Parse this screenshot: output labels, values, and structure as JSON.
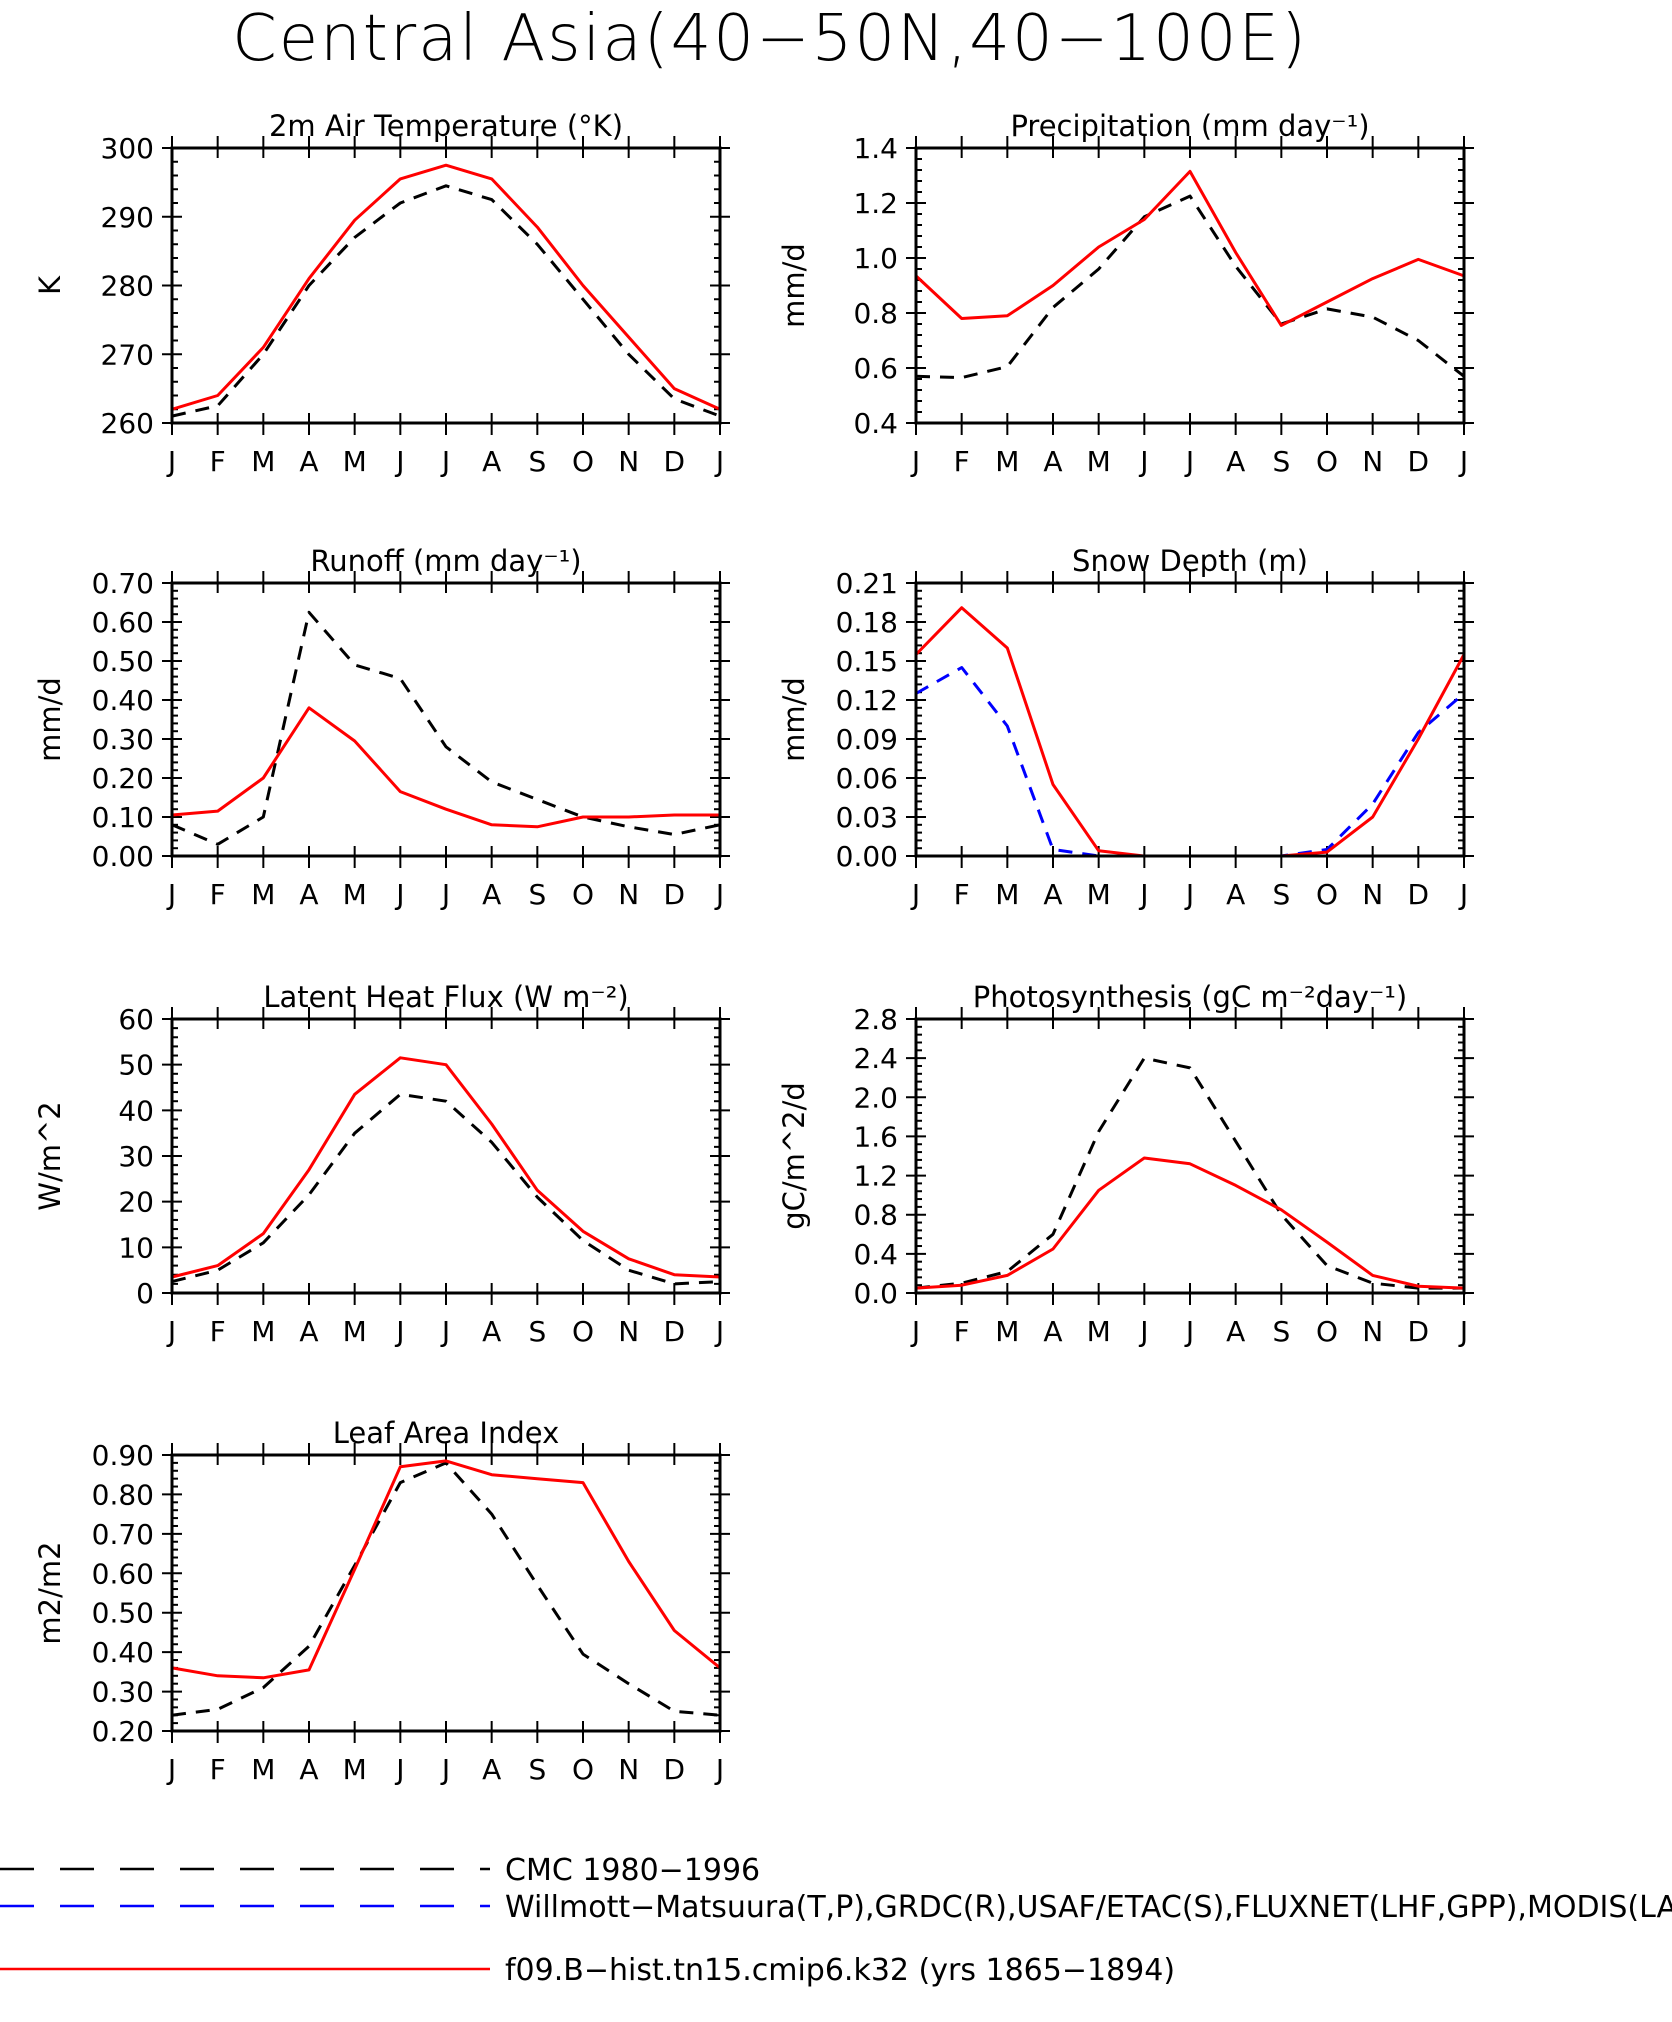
{
  "page": {
    "title": "Central Asia(40−50N,40−100E)"
  },
  "months": [
    "J",
    "F",
    "M",
    "A",
    "M",
    "J",
    "J",
    "A",
    "S",
    "O",
    "N",
    "D",
    "J"
  ],
  "series_styles": {
    "cmc": {
      "color": "#000000",
      "dash": "dashed"
    },
    "obs": {
      "color": "#0000ff",
      "dash": "dashed"
    },
    "model": {
      "color": "#ff0000",
      "dash": "solid"
    }
  },
  "legend": {
    "entries": [
      {
        "key": "cmc",
        "label": "CMC 1980−1996"
      },
      {
        "key": "obs",
        "label": "Willmott−Matsuura(T,P),GRDC(R),USAF/ETAC(S),FLUXNET(LHF,GPP),MODIS(LAI)"
      },
      {
        "key": "model",
        "label": "f09.B−hist.tn15.cmip6.k32 (yrs 1865−1894)"
      }
    ]
  },
  "chart_data": [
    {
      "type": "line",
      "title": "2m Air Temperature (°K)",
      "ylabel": "K",
      "ylim": [
        260,
        300
      ],
      "yticks": [
        260,
        270,
        280,
        290,
        300
      ],
      "ytick_labels": [
        "260",
        "270",
        "280",
        "290",
        "300"
      ],
      "x": [
        "J",
        "F",
        "M",
        "A",
        "M",
        "J",
        "J",
        "A",
        "S",
        "O",
        "N",
        "D",
        "J"
      ],
      "series": [
        {
          "key": "cmc",
          "values": [
            261.0,
            262.5,
            270.0,
            280.0,
            287.0,
            292.0,
            294.5,
            292.5,
            286.0,
            278.0,
            270.0,
            263.5,
            261.0
          ]
        },
        {
          "key": "model",
          "values": [
            262.0,
            264.0,
            271.0,
            281.0,
            289.5,
            295.5,
            297.5,
            295.5,
            288.5,
            280.0,
            272.5,
            265.0,
            262.0
          ]
        }
      ]
    },
    {
      "type": "line",
      "title": "Precipitation (mm day⁻¹)",
      "ylabel": "mm/d",
      "ylim": [
        0.4,
        1.4
      ],
      "yticks": [
        0.4,
        0.6,
        0.8,
        1.0,
        1.2,
        1.4
      ],
      "ytick_labels": [
        "0.4",
        "0.6",
        "0.8",
        "1.0",
        "1.2",
        "1.4"
      ],
      "x": [
        "J",
        "F",
        "M",
        "A",
        "M",
        "J",
        "J",
        "A",
        "S",
        "O",
        "N",
        "D",
        "J"
      ],
      "series": [
        {
          "key": "cmc",
          "values": [
            0.57,
            0.565,
            0.605,
            0.82,
            0.96,
            1.15,
            1.225,
            0.97,
            0.76,
            0.815,
            0.785,
            0.7,
            0.57
          ]
        },
        {
          "key": "model",
          "values": [
            0.935,
            0.78,
            0.79,
            0.9,
            1.04,
            1.14,
            1.315,
            1.02,
            0.755,
            0.84,
            0.925,
            0.995,
            0.935
          ]
        }
      ]
    },
    {
      "type": "line",
      "title": "Runoff (mm day⁻¹)",
      "ylabel": "mm/d",
      "ylim": [
        0.0,
        0.7
      ],
      "yticks": [
        0.0,
        0.1,
        0.2,
        0.3,
        0.4,
        0.5,
        0.6,
        0.7
      ],
      "ytick_labels": [
        "0.00",
        "0.10",
        "0.20",
        "0.30",
        "0.40",
        "0.50",
        "0.60",
        "0.70"
      ],
      "x": [
        "J",
        "F",
        "M",
        "A",
        "M",
        "J",
        "J",
        "A",
        "S",
        "O",
        "N",
        "D",
        "J"
      ],
      "series": [
        {
          "key": "cmc",
          "values": [
            0.08,
            0.03,
            0.1,
            0.625,
            0.49,
            0.455,
            0.28,
            0.19,
            0.145,
            0.1,
            0.075,
            0.055,
            0.08
          ]
        },
        {
          "key": "model",
          "values": [
            0.105,
            0.115,
            0.2,
            0.38,
            0.295,
            0.165,
            0.12,
            0.08,
            0.075,
            0.1,
            0.1,
            0.105,
            0.105
          ]
        }
      ]
    },
    {
      "type": "line",
      "title": "Snow Depth (m)",
      "ylabel": "mm/d",
      "ylim": [
        0.0,
        0.21
      ],
      "yticks": [
        0.0,
        0.03,
        0.06,
        0.09,
        0.12,
        0.15,
        0.18,
        0.21
      ],
      "ytick_labels": [
        "0.00",
        "0.03",
        "0.06",
        "0.09",
        "0.12",
        "0.15",
        "0.18",
        "0.21"
      ],
      "x": [
        "J",
        "F",
        "M",
        "A",
        "M",
        "J",
        "J",
        "A",
        "S",
        "O",
        "N",
        "D",
        "J"
      ],
      "series": [
        {
          "key": "cmc",
          "values": [
            0,
            0,
            0,
            0,
            0,
            0,
            0,
            0,
            0,
            0,
            0,
            0,
            0
          ]
        },
        {
          "key": "obs",
          "values": [
            0.125,
            0.145,
            0.1,
            0.005,
            0.0,
            0.0,
            0.0,
            0.0,
            0.0,
            0.005,
            0.04,
            0.095,
            0.125
          ]
        },
        {
          "key": "model",
          "values": [
            0.155,
            0.191,
            0.16,
            0.055,
            0.004,
            0.0,
            0.0,
            0.0,
            0.0,
            0.003,
            0.03,
            0.09,
            0.155
          ]
        }
      ]
    },
    {
      "type": "line",
      "title": "Latent Heat Flux (W m⁻²)",
      "ylabel": "W/m^2",
      "ylim": [
        0,
        60
      ],
      "yticks": [
        0,
        10,
        20,
        30,
        40,
        50,
        60
      ],
      "ytick_labels": [
        "0",
        "10",
        "20",
        "30",
        "40",
        "50",
        "60"
      ],
      "x": [
        "J",
        "F",
        "M",
        "A",
        "M",
        "J",
        "J",
        "A",
        "S",
        "O",
        "N",
        "D",
        "J"
      ],
      "series": [
        {
          "key": "cmc",
          "values": [
            2.5,
            5.0,
            11.0,
            21.5,
            35.0,
            43.5,
            42.0,
            33.0,
            21.0,
            11.5,
            5.0,
            2.0,
            2.5
          ]
        },
        {
          "key": "model",
          "values": [
            3.5,
            6.0,
            13.0,
            27.0,
            43.5,
            51.5,
            50.0,
            37.0,
            22.5,
            13.5,
            7.5,
            4.0,
            3.5
          ]
        }
      ]
    },
    {
      "type": "line",
      "title": "Photosynthesis (gC m⁻²day⁻¹)",
      "ylabel": "gC/m^2/d",
      "ylim": [
        0.0,
        2.8
      ],
      "yticks": [
        0.0,
        0.4,
        0.8,
        1.2,
        1.6,
        2.0,
        2.4,
        2.8
      ],
      "ytick_labels": [
        "0.0",
        "0.4",
        "0.8",
        "1.2",
        "1.6",
        "2.0",
        "2.4",
        "2.8"
      ],
      "x": [
        "J",
        "F",
        "M",
        "A",
        "M",
        "J",
        "J",
        "A",
        "S",
        "O",
        "N",
        "D",
        "J"
      ],
      "series": [
        {
          "key": "cmc",
          "values": [
            0.05,
            0.1,
            0.22,
            0.6,
            1.65,
            2.4,
            2.3,
            1.55,
            0.8,
            0.28,
            0.1,
            0.05,
            0.05
          ]
        },
        {
          "key": "model",
          "values": [
            0.05,
            0.08,
            0.18,
            0.45,
            1.05,
            1.38,
            1.32,
            1.1,
            0.85,
            0.52,
            0.18,
            0.07,
            0.05
          ]
        }
      ]
    },
    {
      "type": "line",
      "title": "Leaf Area Index",
      "ylabel": "m2/m2",
      "ylim": [
        0.2,
        0.9
      ],
      "yticks": [
        0.2,
        0.3,
        0.4,
        0.5,
        0.6,
        0.7,
        0.8,
        0.9
      ],
      "ytick_labels": [
        "0.20",
        "0.30",
        "0.40",
        "0.50",
        "0.60",
        "0.70",
        "0.80",
        "0.90"
      ],
      "x": [
        "J",
        "F",
        "M",
        "A",
        "M",
        "J",
        "J",
        "A",
        "S",
        "O",
        "N",
        "D",
        "J"
      ],
      "series": [
        {
          "key": "cmc",
          "values": [
            0.24,
            0.255,
            0.31,
            0.415,
            0.62,
            0.83,
            0.88,
            0.75,
            0.57,
            0.395,
            0.32,
            0.25,
            0.24
          ]
        },
        {
          "key": "model",
          "values": [
            0.36,
            0.34,
            0.335,
            0.355,
            0.61,
            0.87,
            0.885,
            0.85,
            0.84,
            0.83,
            0.63,
            0.455,
            0.36
          ]
        }
      ]
    }
  ]
}
